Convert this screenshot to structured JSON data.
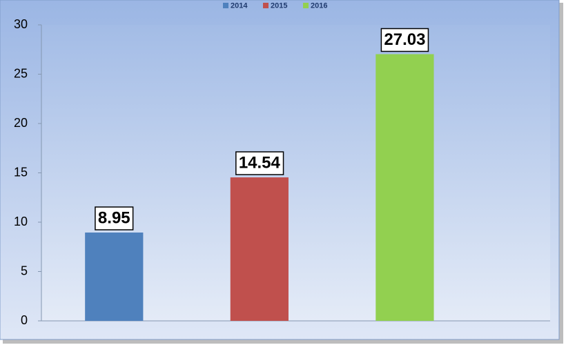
{
  "chart_data": {
    "type": "bar",
    "categories": [
      null
    ],
    "series": [
      {
        "name": "2014",
        "color": "#4f81bd",
        "values": [
          8.95
        ]
      },
      {
        "name": "2015",
        "color": "#c0504d",
        "values": [
          14.54
        ]
      },
      {
        "name": "2016",
        "color": "#92d050",
        "values": [
          27.03
        ]
      }
    ],
    "ylim": [
      0,
      30
    ],
    "yticks": [
      0,
      5,
      10,
      15,
      20,
      25,
      30
    ],
    "legend": "top",
    "grid": false
  }
}
